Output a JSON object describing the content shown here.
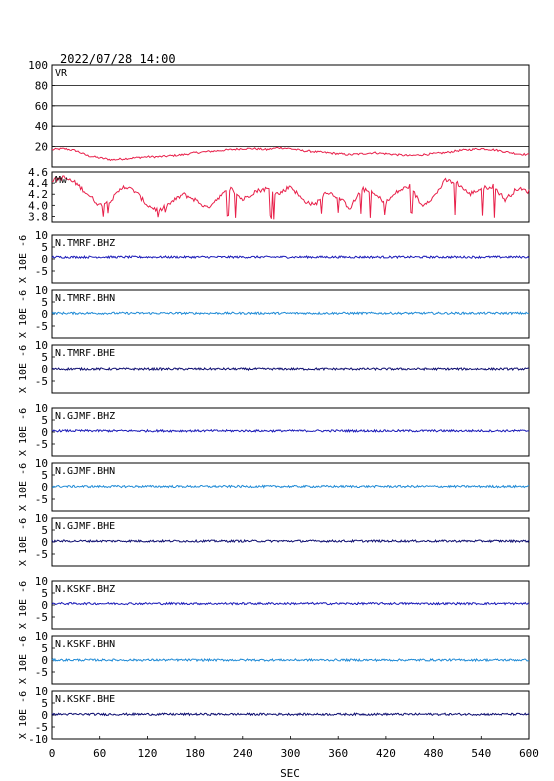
{
  "title": "2022/07/28 14:00",
  "chart_data": {
    "type": "line",
    "xlabel": "SEC",
    "xlim": [
      0,
      600
    ],
    "xticks": [
      0,
      60,
      120,
      180,
      240,
      300,
      360,
      420,
      480,
      540,
      600
    ],
    "panels": [
      {
        "label": "VR",
        "ylim": [
          0,
          100
        ],
        "yticks": [
          20,
          40,
          60,
          80,
          100
        ],
        "ytick_labels": [
          "20",
          "40",
          "60",
          "80",
          "100"
        ],
        "grid": true,
        "color": "#e8204a",
        "series": {
          "x": [
            0,
            15,
            30,
            45,
            60,
            75,
            90,
            105,
            120,
            135,
            150,
            165,
            180,
            195,
            210,
            225,
            240,
            255,
            270,
            285,
            300,
            315,
            330,
            345,
            360,
            375,
            390,
            405,
            420,
            435,
            450,
            465,
            480,
            495,
            510,
            525,
            540,
            555,
            570,
            585,
            600
          ],
          "y": [
            17,
            18,
            16,
            11,
            9,
            7,
            8,
            9,
            10,
            10,
            11,
            12,
            14,
            15,
            16,
            17,
            18,
            18,
            17,
            19,
            18,
            16,
            15,
            14,
            13,
            12,
            13,
            14,
            13,
            12,
            11,
            12,
            13,
            14,
            16,
            17,
            18,
            17,
            15,
            13,
            12
          ]
        }
      },
      {
        "label": "Mw",
        "ylim": [
          3.7,
          4.6
        ],
        "yticks": [
          3.8,
          4.0,
          4.2,
          4.4,
          4.6
        ],
        "ytick_labels": [
          "3.8",
          "4.0",
          "4.2",
          "4.4",
          "4.6"
        ],
        "grid": false,
        "color": "#e8204a",
        "series": {
          "x": [
            0,
            15,
            30,
            45,
            60,
            75,
            90,
            105,
            120,
            135,
            150,
            165,
            180,
            195,
            210,
            225,
            240,
            255,
            270,
            285,
            300,
            315,
            330,
            345,
            360,
            375,
            390,
            405,
            420,
            435,
            450,
            465,
            480,
            495,
            510,
            525,
            540,
            555,
            570,
            585,
            600
          ],
          "y": [
            4.45,
            4.5,
            4.4,
            4.2,
            4.0,
            4.1,
            4.35,
            4.25,
            4.0,
            3.9,
            4.05,
            4.2,
            4.1,
            3.95,
            4.15,
            4.3,
            4.1,
            4.25,
            4.3,
            4.2,
            4.35,
            4.1,
            4.0,
            4.25,
            4.15,
            3.95,
            4.3,
            4.2,
            4.05,
            4.25,
            4.35,
            4.0,
            4.15,
            4.45,
            4.4,
            4.2,
            4.3,
            4.35,
            4.1,
            4.3,
            4.25
          ]
        }
      },
      {
        "label": "N.TMRF.BHZ",
        "ylim": [
          -10,
          10
        ],
        "yticks": [
          -5,
          0,
          5,
          10
        ],
        "ytick_labels": [
          "-5",
          "0",
          "5",
          "10"
        ],
        "offset": 0.8,
        "color": "#1a1ab8",
        "series": {
          "x": [
            0,
            600
          ],
          "y": [
            0.8,
            0.8
          ]
        }
      },
      {
        "label": "N.TMRF.BHN",
        "ylim": [
          -10,
          10
        ],
        "yticks": [
          -5,
          0,
          5,
          10
        ],
        "ytick_labels": [
          "-5",
          "0",
          "5",
          "10"
        ],
        "offset": 0.3,
        "color": "#1e8ad6",
        "series": {
          "x": [
            0,
            600
          ],
          "y": [
            0.3,
            0.3
          ]
        }
      },
      {
        "label": "N.TMRF.BHE",
        "ylim": [
          -10,
          10
        ],
        "yticks": [
          -5,
          0,
          5,
          10
        ],
        "ytick_labels": [
          "-5",
          "0",
          "5",
          "10"
        ],
        "offset": 0.0,
        "color": "#0d0d70",
        "series": {
          "x": [
            0,
            600
          ],
          "y": [
            0.0,
            0.0
          ]
        }
      },
      {
        "label": "N.GJMF.BHZ",
        "ylim": [
          -10,
          10
        ],
        "yticks": [
          -5,
          0,
          5,
          10
        ],
        "ytick_labels": [
          "-5",
          "0",
          "5",
          "10"
        ],
        "offset": 0.5,
        "color": "#1a1ab8",
        "series": {
          "x": [
            0,
            600
          ],
          "y": [
            0.5,
            0.5
          ]
        }
      },
      {
        "label": "N.GJMF.BHN",
        "ylim": [
          -10,
          10
        ],
        "yticks": [
          -5,
          0,
          5,
          10
        ],
        "ytick_labels": [
          "-5",
          "0",
          "5",
          "10"
        ],
        "offset": 0.2,
        "color": "#1e8ad6",
        "series": {
          "x": [
            0,
            600
          ],
          "y": [
            0.2,
            0.2
          ]
        }
      },
      {
        "label": "N.GJMF.BHE",
        "ylim": [
          -10,
          10
        ],
        "yticks": [
          -5,
          0,
          5,
          10
        ],
        "ytick_labels": [
          "-5",
          "0",
          "5",
          "10"
        ],
        "offset": 0.4,
        "color": "#0d0d70",
        "series": {
          "x": [
            0,
            600
          ],
          "y": [
            0.4,
            0.4
          ]
        }
      },
      {
        "label": "N.KSKF.BHZ",
        "ylim": [
          -10,
          10
        ],
        "yticks": [
          -5,
          0,
          5,
          10
        ],
        "ytick_labels": [
          "-5",
          "0",
          "5",
          "10"
        ],
        "offset": 0.6,
        "color": "#1a1ab8",
        "series": {
          "x": [
            0,
            600
          ],
          "y": [
            0.6,
            0.6
          ]
        }
      },
      {
        "label": "N.KSKF.BHN",
        "ylim": [
          -10,
          10
        ],
        "yticks": [
          -5,
          0,
          5,
          10
        ],
        "ytick_labels": [
          "-5",
          "0",
          "5",
          "10"
        ],
        "offset": 0.0,
        "color": "#1e8ad6",
        "series": {
          "x": [
            0,
            600
          ],
          "y": [
            0.0,
            0.0
          ]
        }
      },
      {
        "label": "N.KSKF.BHE",
        "ylim": [
          -10,
          10
        ],
        "yticks": [
          -10,
          -5,
          0,
          5,
          10
        ],
        "ytick_labels": [
          "-10",
          "-5",
          "0",
          "5",
          "10"
        ],
        "offset": 0.3,
        "color": "#0d0d70",
        "series": {
          "x": [
            0,
            600
          ],
          "y": [
            0.3,
            0.3
          ]
        }
      }
    ],
    "seismic_ylabel": "X 10E -6"
  }
}
